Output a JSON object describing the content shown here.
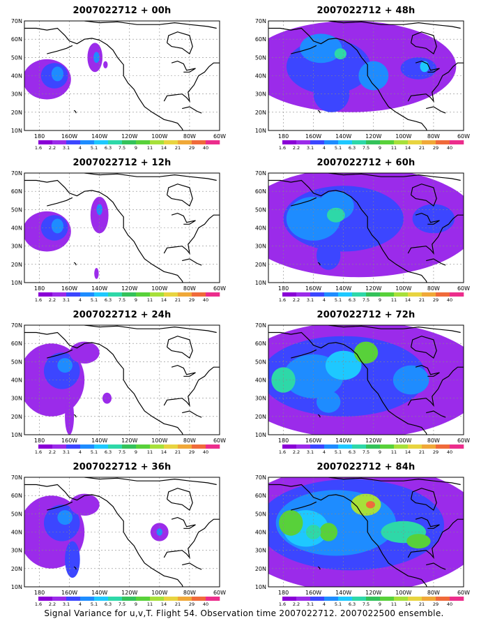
{
  "axis": {
    "lat_labels": [
      "10N",
      "20N",
      "30N",
      "40N",
      "50N",
      "60N",
      "70N"
    ],
    "lon_labels": [
      "180",
      "160W",
      "140W",
      "120W",
      "100W",
      "80W",
      "60W"
    ]
  },
  "colorbar": {
    "labels": [
      "1.6",
      "2.2",
      "3.1",
      "4",
      "5.1",
      "6.3",
      "7.5",
      "9",
      "11",
      "14",
      "21",
      "29",
      "40"
    ],
    "colors": [
      "#ffffff",
      "#8a00d6",
      "#9b2bea",
      "#3c46ff",
      "#1e8cff",
      "#1ec8ff",
      "#2ed8a8",
      "#33c25a",
      "#58d13a",
      "#a7e03a",
      "#e8d440",
      "#f0a838",
      "#f06a3a",
      "#ec2d8c"
    ]
  },
  "panels": [
    {
      "title": "2007022712 + 00h",
      "level": 1
    },
    {
      "title": "2007022712 + 48h",
      "level": 3
    },
    {
      "title": "2007022712 + 12h",
      "level": 1
    },
    {
      "title": "2007022712 + 60h",
      "level": 4
    },
    {
      "title": "2007022712 + 24h",
      "level": 2
    },
    {
      "title": "2007022712 + 72h",
      "level": 5
    },
    {
      "title": "2007022712 + 36h",
      "level": 2
    },
    {
      "title": "2007022712 + 84h",
      "level": 6
    }
  ],
  "footer": "Signal Variance for u,v,T. Flight 54. Observation time 2007022712. 2007022500 ensemble."
}
